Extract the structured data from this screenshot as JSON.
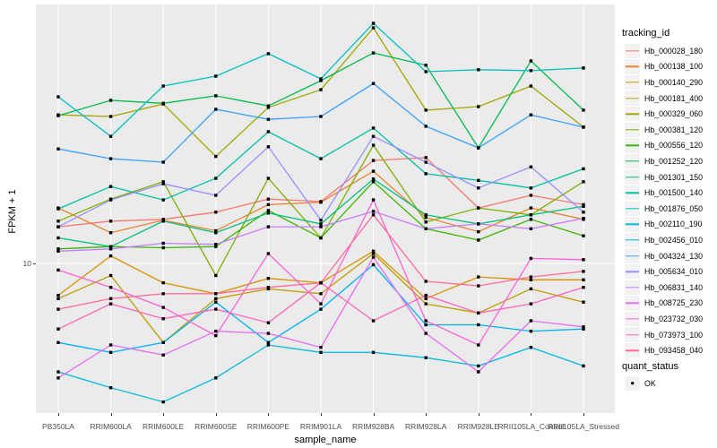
{
  "chart_data": {
    "type": "line",
    "title": "",
    "xlabel": "sample_name",
    "ylabel": "FPKM + 1",
    "y_axis": {
      "scale": "log10",
      "tick_value": 10,
      "tick_label": "10",
      "approx_range": [
        3.0,
        70.0
      ]
    },
    "grid": {
      "color": "#FFFFFF",
      "panel_bg": "#EBEBEB",
      "vertical_at_each_category": true,
      "horizontal_at_tick": true
    },
    "point_color": "#000000",
    "legend_position": "right",
    "categories": [
      "PB350LA",
      "RRIM600LA",
      "RRIM600LE",
      "RRIM600SE",
      "RRIM600PE",
      "RRIM901LA",
      "RRIM928BA",
      "RRIM928LA",
      "RRIM928LE",
      "RRII105LA_Control",
      "RRII105LA_Stressed"
    ],
    "legend_tracking_title": "tracking_id",
    "legend_quant_title": "quant_status",
    "quant_status_value": "OK",
    "series": [
      {
        "name": "Hb_000028_180",
        "color": "#F8766D",
        "values": [
          13.3,
          13.9,
          14.1,
          14.9,
          16.5,
          16.2,
          22.3,
          22.8,
          15.4,
          17.0,
          15.8
        ]
      },
      {
        "name": "Hb_000138_100",
        "color": "#EA8331",
        "values": [
          15.4,
          12.7,
          14.0,
          12.9,
          15.8,
          16.1,
          20.5,
          14.3,
          12.8,
          15.4,
          14.1
        ]
      },
      {
        "name": "Hb_000140_290",
        "color": "#D89000",
        "values": [
          7.8,
          10.6,
          8.6,
          7.9,
          8.9,
          8.6,
          11.0,
          7.6,
          9.0,
          8.8,
          8.8
        ]
      },
      {
        "name": "Hb_000181_400",
        "color": "#C09B00",
        "values": [
          7.6,
          9.1,
          5.4,
          7.6,
          8.2,
          7.9,
          10.8,
          7.3,
          6.8,
          8.2,
          7.4
        ]
      },
      {
        "name": "Hb_000329_060",
        "color": "#A3A500",
        "values": [
          31.8,
          31.4,
          34.6,
          23.0,
          33.7,
          38.7,
          62.6,
          33.0,
          33.9,
          39.8,
          28.9
        ]
      },
      {
        "name": "Hb_000381_120",
        "color": "#7CAE00",
        "values": [
          13.9,
          16.5,
          18.9,
          9.1,
          19.4,
          12.2,
          25.1,
          13.8,
          15.4,
          14.6,
          18.9
        ]
      },
      {
        "name": "Hb_000556_120",
        "color": "#39B600",
        "values": [
          11.2,
          11.4,
          11.3,
          11.4,
          15.1,
          12.2,
          18.9,
          13.1,
          12.0,
          14.1,
          12.4
        ]
      },
      {
        "name": "Hb_001252_120",
        "color": "#00BB4E",
        "values": [
          31.6,
          35.6,
          34.8,
          36.9,
          34.1,
          41.5,
          51.5,
          46.8,
          24.6,
          48.4,
          33.0
        ]
      },
      {
        "name": "Hb_001301_150",
        "color": "#00BF7D",
        "values": [
          12.2,
          11.4,
          13.9,
          12.7,
          14.8,
          13.6,
          19.3,
          14.6,
          13.6,
          14.6,
          15.6
        ]
      },
      {
        "name": "Hb_001500_140",
        "color": "#00C1A3",
        "values": [
          15.3,
          18.2,
          16.4,
          19.4,
          27.9,
          22.6,
          28.7,
          20.1,
          19.1,
          18.0,
          20.9
        ]
      },
      {
        "name": "Hb_001876_050",
        "color": "#00BFC4",
        "values": [
          36.6,
          26.9,
          39.8,
          43.0,
          51.2,
          42.1,
          64.9,
          44.5,
          45.2,
          44.9,
          45.8
        ]
      },
      {
        "name": "Hb_002110_190",
        "color": "#00BAE0",
        "values": [
          4.3,
          3.8,
          3.4,
          4.1,
          5.3,
          5.0,
          5.0,
          4.8,
          4.5,
          5.2,
          4.5
        ]
      },
      {
        "name": "Hb_002456_010",
        "color": "#00B0F6",
        "values": [
          5.4,
          5.0,
          5.4,
          7.4,
          5.4,
          7.0,
          9.9,
          6.2,
          6.2,
          5.9,
          6.0
        ]
      },
      {
        "name": "Hb_004324_130",
        "color": "#35A2FF",
        "values": [
          24.4,
          22.6,
          22.0,
          33.2,
          30.7,
          31.4,
          40.6,
          29.1,
          24.6,
          31.8,
          28.9
        ]
      },
      {
        "name": "Hb_005634_010",
        "color": "#9590FF",
        "values": [
          13.3,
          16.4,
          18.6,
          17.0,
          24.8,
          14.0,
          26.9,
          22.0,
          18.0,
          21.2,
          14.9
        ]
      },
      {
        "name": "Hb_006831_140",
        "color": "#C77CFF",
        "values": [
          11.0,
          11.2,
          11.7,
          11.6,
          13.3,
          13.3,
          15.0,
          13.1,
          13.6,
          13.1,
          14.2
        ]
      },
      {
        "name": "Hb_008725_230",
        "color": "#E76BF3",
        "values": [
          4.1,
          5.3,
          4.9,
          5.9,
          5.8,
          5.2,
          10.5,
          5.8,
          4.3,
          6.4,
          6.1
        ]
      },
      {
        "name": "Hb_023732_030",
        "color": "#FA62DB",
        "values": [
          9.5,
          8.3,
          7.1,
          5.7,
          10.8,
          7.3,
          16.4,
          6.4,
          5.3,
          10.4,
          10.3
        ]
      },
      {
        "name": "Hb_073973_100",
        "color": "#FF62BC",
        "values": [
          6.0,
          7.3,
          6.5,
          7.0,
          6.3,
          8.6,
          6.4,
          7.8,
          6.8,
          7.3,
          8.3
        ]
      },
      {
        "name": "Hb_093458_040",
        "color": "#FF6A98",
        "values": [
          7.0,
          7.6,
          7.9,
          7.9,
          8.3,
          8.6,
          14.6,
          8.7,
          8.4,
          9.0,
          9.4
        ]
      }
    ]
  }
}
